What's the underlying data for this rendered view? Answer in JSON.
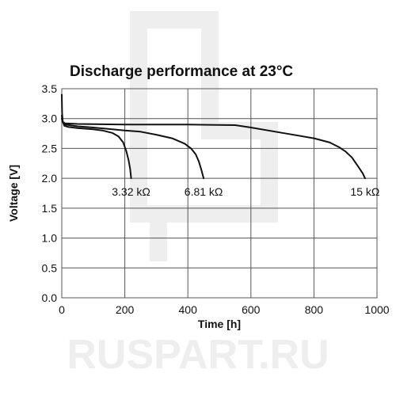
{
  "watermark": {
    "text": "RUSPART.RU"
  },
  "chart_data": {
    "type": "line",
    "title": "Discharge performance at 23°C",
    "xlabel": "Time [h]",
    "ylabel": "Voltage [V]",
    "xlim": [
      0,
      1000
    ],
    "ylim": [
      0.0,
      3.5
    ],
    "xticks": [
      "0",
      "200",
      "400",
      "600",
      "800",
      "1000"
    ],
    "yticks": [
      "0.0",
      "0.5",
      "1.0",
      "1.5",
      "2.0",
      "2.5",
      "3.0",
      "3.5"
    ],
    "grid": true,
    "series": [
      {
        "name": "3.32 kΩ",
        "x": [
          0,
          1,
          3,
          8,
          20,
          50,
          100,
          130,
          160,
          180,
          195,
          205,
          212,
          217,
          220
        ],
        "y": [
          3.4,
          3.1,
          2.95,
          2.88,
          2.86,
          2.84,
          2.82,
          2.8,
          2.76,
          2.7,
          2.6,
          2.45,
          2.3,
          2.15,
          2.0
        ]
      },
      {
        "name": "6.81 kΩ",
        "x": [
          0,
          2,
          10,
          50,
          100,
          200,
          250,
          300,
          350,
          390,
          410,
          425,
          435,
          443,
          450
        ],
        "y": [
          3.05,
          2.95,
          2.9,
          2.87,
          2.85,
          2.8,
          2.78,
          2.73,
          2.67,
          2.58,
          2.5,
          2.4,
          2.28,
          2.14,
          2.0
        ]
      },
      {
        "name": "15 kΩ",
        "x": [
          0,
          2,
          10,
          50,
          200,
          400,
          550,
          600,
          700,
          800,
          850,
          880,
          900,
          920,
          940,
          955,
          962
        ],
        "y": [
          3.0,
          2.95,
          2.92,
          2.91,
          2.9,
          2.9,
          2.89,
          2.85,
          2.76,
          2.67,
          2.6,
          2.52,
          2.45,
          2.35,
          2.2,
          2.08,
          2.0
        ]
      }
    ]
  }
}
